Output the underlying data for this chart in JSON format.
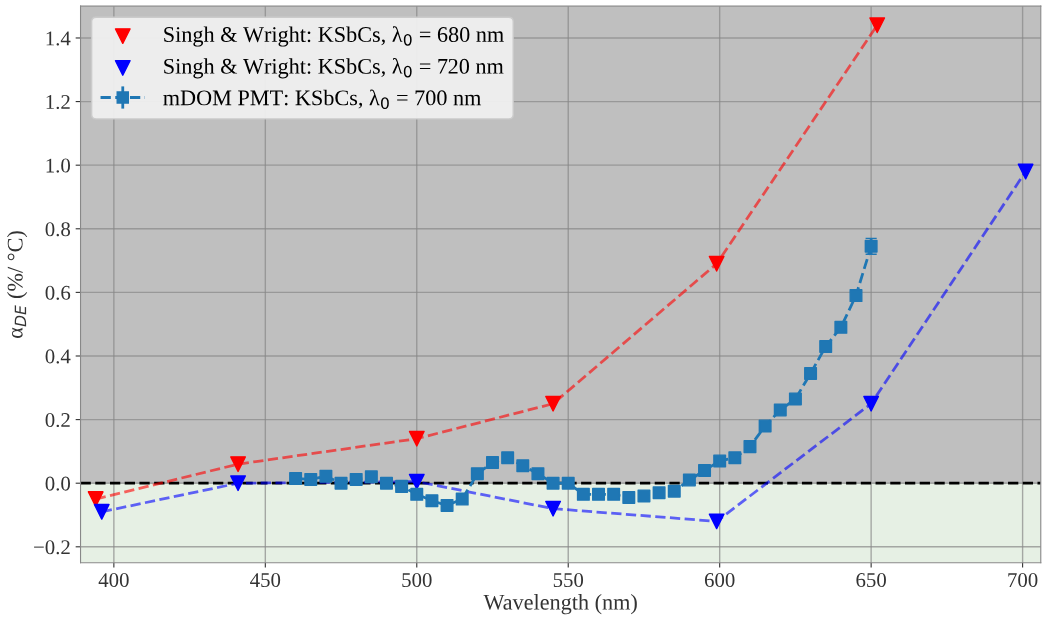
{
  "chart_data": {
    "type": "line",
    "xlabel": "Wavelength (nm)",
    "ylabel": "α$_{DE}$ (%/ °C)",
    "xlim": [
      389,
      706
    ],
    "xticks": [
      400,
      450,
      500,
      550,
      600,
      650,
      700
    ],
    "ylim": [
      -0.25,
      1.5
    ],
    "yticks": [
      {
        "value": -0.2,
        "label": "−0.2"
      },
      {
        "value": 0.0,
        "label": "0.0"
      },
      {
        "value": 0.2,
        "label": "0.2"
      },
      {
        "value": 0.4,
        "label": "0.4"
      },
      {
        "value": 0.6,
        "label": "0.6"
      },
      {
        "value": 0.8,
        "label": "0.8"
      },
      {
        "value": 1.0,
        "label": "1.0"
      },
      {
        "value": 1.2,
        "label": "1.2"
      },
      {
        "value": 1.4,
        "label": "1.4"
      }
    ],
    "grid": true,
    "legend": "top left",
    "bands": [
      {
        "axis": "y",
        "from": 0,
        "to": 1.5,
        "color": "#bfbfbf"
      },
      {
        "axis": "y",
        "from": -0.25,
        "to": 0,
        "color": "#e6f0e4"
      }
    ],
    "ref_lines": [
      {
        "axis": "y",
        "value": 0,
        "color": "#000000",
        "line_style": "dashed"
      }
    ],
    "series": [
      {
        "name": "Singh & Wright: KSbCs, λ$_{0}$ = 680 nm",
        "color": "#ff0000",
        "marker": "triangle",
        "line_style": "dashed",
        "x": [
          394,
          441,
          500,
          545,
          599,
          652
        ],
        "values": [
          -0.05,
          0.06,
          0.14,
          0.25,
          0.69,
          1.44
        ]
      },
      {
        "name": "Singh & Wright: KSbCs, λ$_{0}$ = 720 nm",
        "color": "#0000ff",
        "marker": "triangle",
        "line_style": "dashed",
        "x": [
          396,
          441,
          500,
          545,
          599,
          650,
          701
        ],
        "values": [
          -0.09,
          0.0,
          0.005,
          -0.08,
          -0.12,
          0.25,
          0.98
        ]
      },
      {
        "name": "mDOM PMT: KSbCs, λ$_{0}$ = 700 nm",
        "color": "#1f77b4",
        "marker": "square",
        "line_style": "dashed",
        "x": [
          460,
          465,
          470,
          475,
          480,
          485,
          490,
          495,
          500,
          505,
          510,
          515,
          520,
          525,
          530,
          535,
          540,
          545,
          550,
          555,
          560,
          565,
          570,
          575,
          580,
          585,
          590,
          595,
          600,
          605,
          610,
          615,
          620,
          625,
          630,
          635,
          640,
          645,
          650
        ],
        "values": [
          0.015,
          0.012,
          0.022,
          0.0,
          0.012,
          0.02,
          0.0,
          -0.01,
          -0.035,
          -0.055,
          -0.07,
          -0.05,
          0.03,
          0.065,
          0.08,
          0.055,
          0.03,
          0.0,
          0.0,
          -0.035,
          -0.035,
          -0.035,
          -0.045,
          -0.04,
          -0.03,
          -0.025,
          0.01,
          0.04,
          0.07,
          0.08,
          0.115,
          0.18,
          0.23,
          0.265,
          0.345,
          0.43,
          0.49,
          0.59,
          0.745
        ],
        "errors": [
          null,
          null,
          null,
          null,
          null,
          null,
          null,
          null,
          null,
          null,
          null,
          null,
          null,
          null,
          null,
          null,
          null,
          null,
          null,
          null,
          null,
          null,
          null,
          null,
          null,
          null,
          null,
          null,
          null,
          null,
          null,
          null,
          null,
          null,
          null,
          null,
          null,
          0.015,
          0.025
        ]
      }
    ]
  }
}
